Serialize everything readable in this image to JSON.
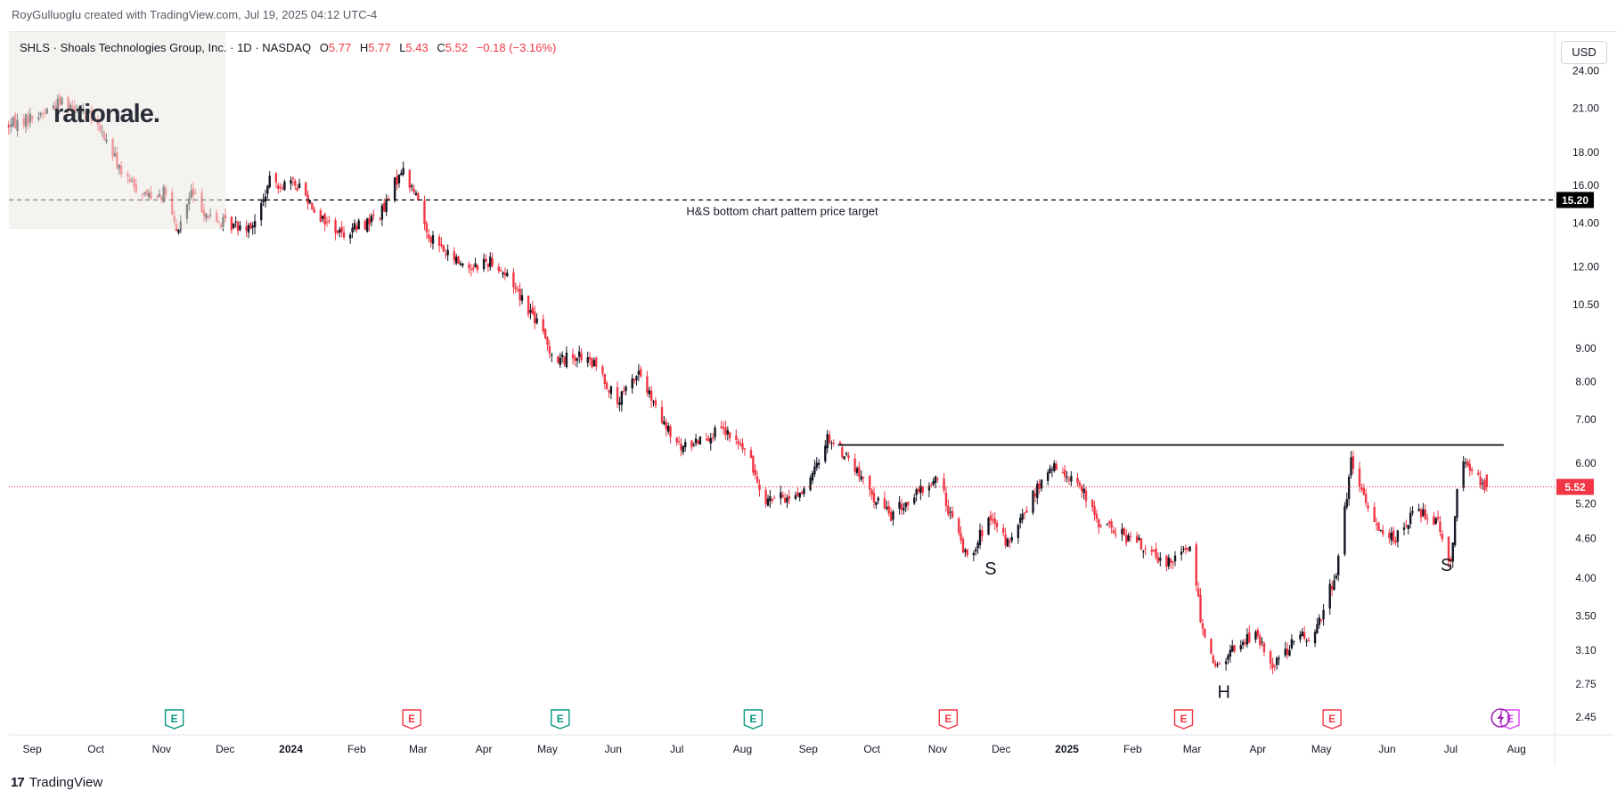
{
  "header": {
    "attribution": "RoyGulluoglu created with TradingView.com, Jul 19, 2025 04:12 UTC-4"
  },
  "legend": {
    "symbol": "SHLS",
    "name": "Shoals Technologies Group, Inc.",
    "interval": "1D",
    "exchange": "NASDAQ",
    "open_label": "O",
    "open": "5.77",
    "high_label": "H",
    "high": "5.77",
    "low_label": "L",
    "low": "5.43",
    "close_label": "C",
    "close": "5.52",
    "change": "−0.18 (−3.16%)"
  },
  "watermark": {
    "text": "rationale."
  },
  "toolbar": {
    "currency": "USD"
  },
  "branding": {
    "name": "TradingView",
    "mark": "17"
  },
  "colors": {
    "up": "#131722",
    "down": "#f23645",
    "price_line": "#f23645",
    "earnings_beat": "#089981",
    "earnings_miss": "#f23645",
    "dividend": "#e040fb"
  },
  "chart_data": {
    "type": "candlestick",
    "title": "SHLS · Shoals Technologies Group, Inc. · 1D · NASDAQ",
    "x_range": [
      "2023-08-21",
      "2025-08-19"
    ],
    "y_scale": "log",
    "ylim": [
      2.3,
      27.5
    ],
    "y_ticks": [
      "24.00",
      "21.00",
      "18.00",
      "16.00",
      "14.00",
      "12.00",
      "10.50",
      "9.00",
      "8.00",
      "7.00",
      "6.00",
      "5.20",
      "4.60",
      "4.00",
      "3.50",
      "3.10",
      "2.75",
      "2.45"
    ],
    "x_ticks": [
      {
        "date": "2023-09-01",
        "label": "Sep"
      },
      {
        "date": "2023-10-01",
        "label": "Oct"
      },
      {
        "date": "2023-11-01",
        "label": "Nov"
      },
      {
        "date": "2023-12-01",
        "label": "Dec"
      },
      {
        "date": "2024-01-01",
        "label": "2024",
        "bold": true
      },
      {
        "date": "2024-02-01",
        "label": "Feb"
      },
      {
        "date": "2024-03-01",
        "label": "Mar"
      },
      {
        "date": "2024-04-01",
        "label": "Apr"
      },
      {
        "date": "2024-05-01",
        "label": "May"
      },
      {
        "date": "2024-06-01",
        "label": "Jun"
      },
      {
        "date": "2024-07-01",
        "label": "Jul"
      },
      {
        "date": "2024-08-01",
        "label": "Aug"
      },
      {
        "date": "2024-09-01",
        "label": "Sep"
      },
      {
        "date": "2024-10-01",
        "label": "Oct"
      },
      {
        "date": "2024-11-01",
        "label": "Nov"
      },
      {
        "date": "2024-12-01",
        "label": "Dec"
      },
      {
        "date": "2025-01-01",
        "label": "2025",
        "bold": true
      },
      {
        "date": "2025-02-01",
        "label": "Feb"
      },
      {
        "date": "2025-03-01",
        "label": "Mar"
      },
      {
        "date": "2025-04-01",
        "label": "Apr"
      },
      {
        "date": "2025-05-01",
        "label": "May"
      },
      {
        "date": "2025-06-01",
        "label": "Jun"
      },
      {
        "date": "2025-07-01",
        "label": "Jul"
      },
      {
        "date": "2025-08-01",
        "label": "Aug"
      }
    ],
    "price_path": [
      [
        "2023-08-21",
        19.8
      ],
      [
        "2023-09-05",
        20.6
      ],
      [
        "2023-09-15",
        21.6
      ],
      [
        "2023-09-25",
        21.0
      ],
      [
        "2023-10-05",
        19.0
      ],
      [
        "2023-10-15",
        16.3
      ],
      [
        "2023-10-25",
        15.5
      ],
      [
        "2023-11-03",
        15.6
      ],
      [
        "2023-11-08",
        13.5
      ],
      [
        "2023-11-15",
        15.6
      ],
      [
        "2023-11-25",
        14.1
      ],
      [
        "2023-12-05",
        13.9
      ],
      [
        "2023-12-15",
        14.0
      ],
      [
        "2023-12-22",
        16.2
      ],
      [
        "2024-01-05",
        16.0
      ],
      [
        "2024-01-15",
        14.3
      ],
      [
        "2024-01-25",
        13.5
      ],
      [
        "2024-02-05",
        14.0
      ],
      [
        "2024-02-14",
        14.7
      ],
      [
        "2024-02-22",
        17.0
      ],
      [
        "2024-03-02",
        15.0
      ],
      [
        "2024-03-05",
        13.6
      ],
      [
        "2024-03-15",
        12.5
      ],
      [
        "2024-03-25",
        12.0
      ],
      [
        "2024-04-05",
        12.3
      ],
      [
        "2024-04-15",
        11.3
      ],
      [
        "2024-04-25",
        10.0
      ],
      [
        "2024-05-05",
        8.6
      ],
      [
        "2024-05-15",
        8.8
      ],
      [
        "2024-05-25",
        8.4
      ],
      [
        "2024-06-03",
        7.4
      ],
      [
        "2024-06-13",
        8.3
      ],
      [
        "2024-06-23",
        7.0
      ],
      [
        "2024-07-03",
        6.3
      ],
      [
        "2024-07-13",
        6.6
      ],
      [
        "2024-07-23",
        6.7
      ],
      [
        "2024-08-02",
        6.3
      ],
      [
        "2024-08-12",
        5.3
      ],
      [
        "2024-08-22",
        5.3
      ],
      [
        "2024-09-01",
        5.5
      ],
      [
        "2024-09-10",
        6.6
      ],
      [
        "2024-09-20",
        6.1
      ],
      [
        "2024-09-30",
        5.4
      ],
      [
        "2024-10-10",
        5.0
      ],
      [
        "2024-10-20",
        5.3
      ],
      [
        "2024-11-01",
        5.7
      ],
      [
        "2024-11-08",
        4.9
      ],
      [
        "2024-11-15",
        4.3
      ],
      [
        "2024-11-25",
        4.9
      ],
      [
        "2024-12-05",
        4.5
      ],
      [
        "2024-12-15",
        5.3
      ],
      [
        "2024-12-25",
        5.9
      ],
      [
        "2025-01-05",
        5.7
      ],
      [
        "2025-01-15",
        4.9
      ],
      [
        "2025-01-25",
        4.7
      ],
      [
        "2025-02-05",
        4.5
      ],
      [
        "2025-02-15",
        4.2
      ],
      [
        "2025-02-28",
        4.5
      ],
      [
        "2025-03-05",
        3.5
      ],
      [
        "2025-03-12",
        2.9
      ],
      [
        "2025-03-20",
        3.1
      ],
      [
        "2025-03-30",
        3.3
      ],
      [
        "2025-04-08",
        2.95
      ],
      [
        "2025-04-18",
        3.2
      ],
      [
        "2025-04-28",
        3.3
      ],
      [
        "2025-05-08",
        4.1
      ],
      [
        "2025-05-15",
        6.0
      ],
      [
        "2025-05-25",
        4.9
      ],
      [
        "2025-06-05",
        4.6
      ],
      [
        "2025-06-15",
        5.1
      ],
      [
        "2025-06-25",
        4.9
      ],
      [
        "2025-07-01",
        4.2
      ],
      [
        "2025-07-05",
        6.1
      ],
      [
        "2025-07-12",
        5.8
      ],
      [
        "2025-07-18",
        5.52
      ]
    ],
    "last": {
      "open": 5.77,
      "high": 5.77,
      "low": 5.43,
      "close": 5.52,
      "change": -0.18,
      "change_pct": -3.16
    },
    "price_label": "5.52",
    "target": {
      "value": 15.2,
      "label": "15.20",
      "text": "H&S bottom chart pattern price target"
    },
    "neckline": {
      "from": "2024-09-15",
      "to": "2025-07-26",
      "value": 6.4
    },
    "annotations": [
      {
        "text": "S",
        "date": "2024-11-26",
        "value": 4.05
      },
      {
        "text": "H",
        "date": "2025-03-16",
        "value": 2.62
      },
      {
        "text": "S",
        "date": "2025-06-29",
        "value": 4.1
      }
    ],
    "events": [
      {
        "date": "2023-11-07",
        "kind": "earnings",
        "result": "beat",
        "label": "E"
      },
      {
        "date": "2024-02-27",
        "kind": "earnings",
        "result": "miss",
        "label": "E"
      },
      {
        "date": "2024-05-07",
        "kind": "earnings",
        "result": "beat",
        "label": "E"
      },
      {
        "date": "2024-08-06",
        "kind": "earnings",
        "result": "beat",
        "label": "E"
      },
      {
        "date": "2024-11-06",
        "kind": "earnings",
        "result": "miss",
        "label": "E"
      },
      {
        "date": "2025-02-25",
        "kind": "earnings",
        "result": "miss",
        "label": "E"
      },
      {
        "date": "2025-05-06",
        "kind": "earnings",
        "result": "miss",
        "label": "E"
      },
      {
        "date": "2025-07-29",
        "kind": "earnings",
        "result": "upcoming",
        "label": "E"
      }
    ]
  }
}
